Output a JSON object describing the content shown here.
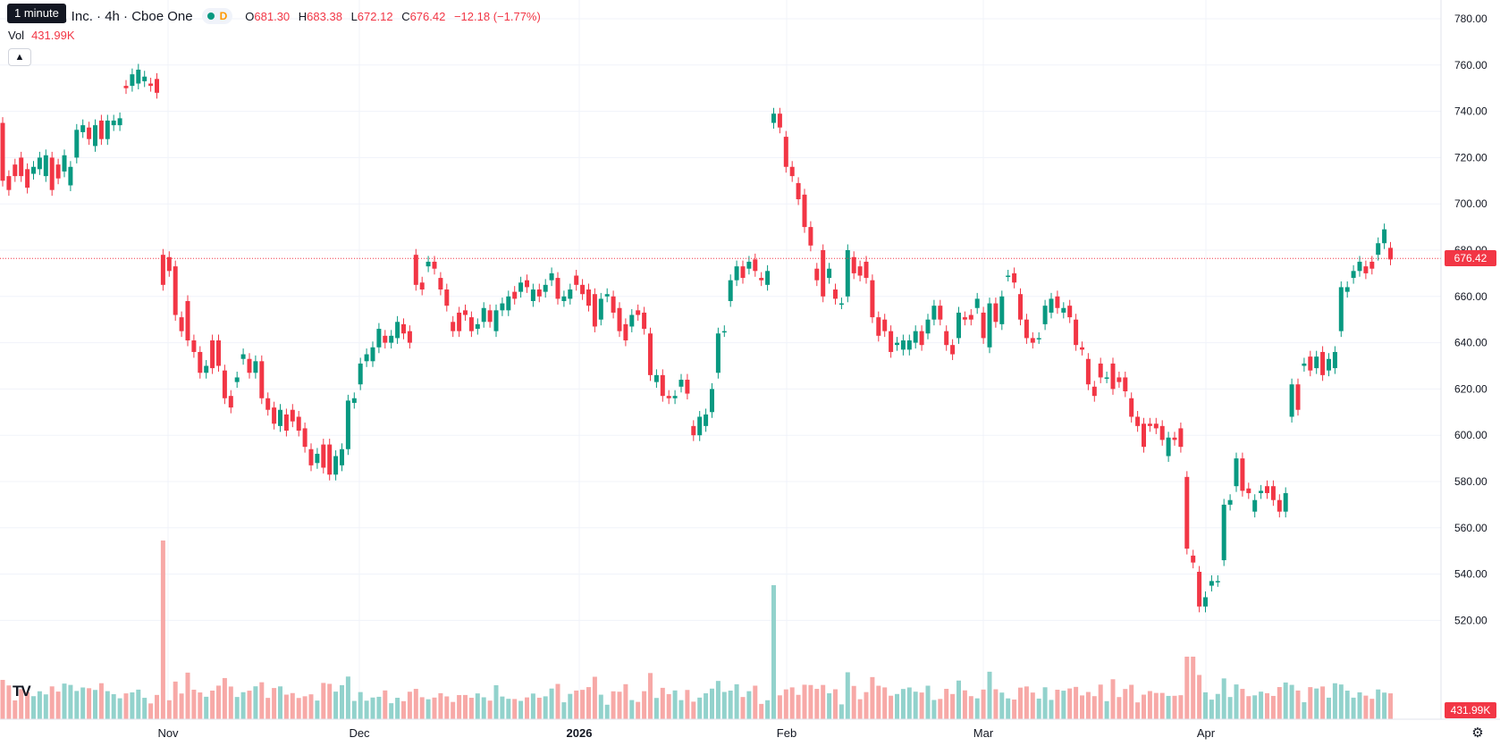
{
  "legend": {
    "title": "Platforms, Inc. · 4h · Cboe One",
    "flag": "D",
    "open_key": "O",
    "open": "681.30",
    "high_key": "H",
    "high": "683.38",
    "low_key": "L",
    "low": "672.12",
    "close_key": "C",
    "close": "676.42",
    "change": "−12.18 (−1.77%)"
  },
  "volume": {
    "label": "Vol",
    "value": "431.99K"
  },
  "tooltip": "1 minute",
  "collapse_icon": "chevron-up-icon",
  "logo": "TV",
  "settings_icon": "gear-icon",
  "last_price_tag": "676.42",
  "last_volume_tag": "431.99K",
  "colors": {
    "up": "#089981",
    "down": "#f23645",
    "up_volume": "#92d2cc",
    "down_volume": "#f7a9a7",
    "grid": "#f0f3fa"
  },
  "chart_data": {
    "type": "candlestick",
    "y_axis_ticks": [
      "780.00",
      "760.00",
      "740.00",
      "720.00",
      "700.00",
      "680.00",
      "660.00",
      "640.00",
      "620.00",
      "600.00",
      "580.00",
      "560.00",
      "540.00",
      "520.00"
    ],
    "ylim": [
      513,
      784
    ],
    "x_axis_labels": [
      "Nov",
      "Dec",
      "2026",
      "Feb",
      "Mar",
      "Apr"
    ],
    "last_price": 676.42,
    "candles": [
      [
        0,
        735,
        710
      ],
      [
        1,
        712,
        706
      ],
      [
        2,
        717,
        712
      ],
      [
        3,
        720,
        712
      ],
      [
        4,
        715,
        707
      ],
      [
        5,
        713,
        716
      ],
      [
        6,
        715,
        720
      ],
      [
        7,
        712,
        721
      ],
      [
        8,
        720,
        706
      ],
      [
        9,
        717,
        711
      ],
      [
        10,
        714,
        721
      ],
      [
        11,
        708,
        716
      ],
      [
        12,
        720,
        732
      ],
      [
        13,
        731,
        734
      ],
      [
        14,
        733,
        728
      ],
      [
        15,
        725,
        734
      ],
      [
        16,
        736,
        728
      ],
      [
        17,
        728,
        736
      ],
      [
        18,
        734,
        736
      ],
      [
        19,
        734,
        737
      ],
      [
        20,
        751,
        750
      ],
      [
        21,
        751,
        756
      ],
      [
        22,
        752,
        758
      ],
      [
        23,
        753,
        755
      ],
      [
        24,
        752,
        751
      ],
      [
        25,
        754,
        748
      ],
      [
        26,
        678,
        665
      ],
      [
        27,
        677,
        671
      ],
      [
        28,
        673,
        652
      ],
      [
        29,
        651,
        645
      ],
      [
        30,
        658,
        641
      ],
      [
        31,
        641,
        636
      ],
      [
        32,
        636,
        627
      ],
      [
        33,
        627,
        630
      ],
      [
        34,
        641,
        629
      ],
      [
        35,
        641,
        630
      ],
      [
        36,
        628,
        616
      ],
      [
        37,
        617,
        612
      ],
      [
        38,
        623,
        625
      ],
      [
        39,
        633,
        635
      ],
      [
        40,
        633,
        627
      ],
      [
        41,
        627,
        632
      ],
      [
        42,
        632,
        616
      ],
      [
        43,
        616,
        611
      ],
      [
        44,
        612,
        605
      ],
      [
        45,
        604,
        611
      ],
      [
        46,
        609,
        602
      ],
      [
        47,
        611,
        606
      ],
      [
        48,
        608,
        602
      ],
      [
        49,
        603,
        595
      ],
      [
        50,
        594,
        587
      ],
      [
        51,
        588,
        592
      ],
      [
        52,
        596,
        586
      ],
      [
        53,
        596,
        583
      ],
      [
        54,
        583,
        591
      ],
      [
        55,
        587,
        594
      ],
      [
        56,
        594,
        615
      ],
      [
        57,
        614,
        616
      ],
      [
        58,
        622,
        631
      ],
      [
        59,
        632,
        635
      ],
      [
        60,
        632,
        638
      ],
      [
        61,
        638,
        646
      ],
      [
        62,
        643,
        640
      ],
      [
        63,
        640,
        643
      ],
      [
        64,
        642,
        649
      ],
      [
        65,
        648,
        644
      ],
      [
        66,
        645,
        640
      ],
      [
        67,
        678,
        665
      ],
      [
        68,
        666,
        663
      ],
      [
        69,
        673,
        675
      ],
      [
        70,
        675,
        672
      ],
      [
        71,
        668,
        663
      ],
      [
        72,
        663,
        656
      ],
      [
        73,
        649,
        645
      ],
      [
        74,
        653,
        645
      ],
      [
        75,
        654,
        652
      ],
      [
        76,
        651,
        645
      ],
      [
        77,
        646,
        648
      ],
      [
        78,
        649,
        655
      ],
      [
        79,
        654,
        649
      ],
      [
        80,
        645,
        654
      ],
      [
        81,
        654,
        657
      ],
      [
        82,
        654,
        660
      ],
      [
        83,
        662,
        659
      ],
      [
        84,
        662,
        666
      ],
      [
        85,
        667,
        664
      ],
      [
        86,
        658,
        663
      ],
      [
        87,
        663,
        660
      ],
      [
        88,
        662,
        665
      ],
      [
        89,
        667,
        670
      ],
      [
        90,
        668,
        659
      ],
      [
        91,
        658,
        660
      ],
      [
        92,
        659,
        663
      ],
      [
        93,
        669,
        665
      ],
      [
        94,
        665,
        661
      ],
      [
        95,
        663,
        656
      ],
      [
        96,
        661,
        647
      ],
      [
        97,
        650,
        659
      ],
      [
        98,
        660,
        661
      ],
      [
        99,
        660,
        653
      ],
      [
        100,
        655,
        645
      ],
      [
        101,
        648,
        641
      ],
      [
        102,
        647,
        652
      ],
      [
        103,
        654,
        652
      ],
      [
        104,
        653,
        646
      ],
      [
        105,
        644,
        626
      ],
      [
        106,
        623,
        626
      ],
      [
        107,
        626,
        617
      ],
      [
        108,
        617,
        616
      ],
      [
        109,
        616,
        617
      ],
      [
        110,
        621,
        624
      ],
      [
        111,
        624,
        618
      ],
      [
        112,
        604,
        600
      ],
      [
        113,
        600,
        608
      ],
      [
        114,
        604,
        609
      ],
      [
        115,
        610,
        620
      ],
      [
        116,
        627,
        644
      ],
      [
        117,
        645,
        645
      ],
      [
        118,
        658,
        667
      ],
      [
        119,
        667,
        673
      ],
      [
        120,
        673,
        668
      ],
      [
        121,
        672,
        675
      ],
      [
        122,
        676,
        671
      ],
      [
        123,
        668,
        667
      ],
      [
        124,
        665,
        671
      ],
      [
        125,
        735,
        739
      ],
      [
        126,
        739,
        733
      ],
      [
        127,
        729,
        716
      ],
      [
        128,
        716,
        712
      ],
      [
        129,
        709,
        702
      ],
      [
        130,
        704,
        690
      ],
      [
        131,
        690,
        682
      ],
      [
        132,
        672,
        667
      ],
      [
        133,
        680,
        660
      ],
      [
        134,
        668,
        672
      ],
      [
        135,
        663,
        659
      ],
      [
        136,
        657,
        657
      ],
      [
        137,
        660,
        680
      ],
      [
        138,
        677,
        670
      ],
      [
        139,
        673,
        669
      ],
      [
        140,
        675,
        668
      ],
      [
        141,
        667,
        651
      ],
      [
        142,
        651,
        643
      ],
      [
        143,
        650,
        645
      ],
      [
        144,
        645,
        636
      ],
      [
        145,
        639,
        640
      ],
      [
        146,
        637,
        641
      ],
      [
        147,
        637,
        641
      ],
      [
        148,
        640,
        645
      ],
      [
        149,
        645,
        639
      ],
      [
        150,
        644,
        650
      ],
      [
        151,
        650,
        656
      ],
      [
        152,
        656,
        650
      ],
      [
        153,
        645,
        639
      ],
      [
        154,
        639,
        635
      ],
      [
        155,
        642,
        653
      ],
      [
        156,
        651,
        650
      ],
      [
        157,
        652,
        650
      ],
      [
        158,
        655,
        659
      ],
      [
        159,
        653,
        642
      ],
      [
        160,
        638,
        657
      ],
      [
        161,
        657,
        649
      ],
      [
        162,
        648,
        660
      ],
      [
        163,
        669,
        669
      ],
      [
        164,
        670,
        666
      ],
      [
        165,
        661,
        650
      ],
      [
        166,
        650,
        642
      ],
      [
        167,
        642,
        640
      ],
      [
        168,
        642,
        642
      ],
      [
        169,
        648,
        656
      ],
      [
        170,
        653,
        659
      ],
      [
        171,
        660,
        655
      ],
      [
        172,
        653,
        655
      ],
      [
        173,
        656,
        651
      ],
      [
        174,
        650,
        639
      ],
      [
        175,
        638,
        637
      ],
      [
        176,
        633,
        622
      ],
      [
        177,
        621,
        617
      ],
      [
        178,
        631,
        625
      ],
      [
        179,
        625,
        625
      ],
      [
        180,
        631,
        620
      ],
      [
        181,
        625,
        623
      ],
      [
        182,
        625,
        619
      ],
      [
        183,
        616,
        608
      ],
      [
        184,
        608,
        604
      ],
      [
        185,
        605,
        595
      ],
      [
        186,
        605,
        604
      ],
      [
        187,
        605,
        603
      ],
      [
        188,
        604,
        598
      ],
      [
        189,
        591,
        599
      ],
      [
        190,
        599,
        598
      ],
      [
        191,
        603,
        595
      ],
      [
        192,
        582,
        551
      ],
      [
        193,
        548,
        545
      ],
      [
        194,
        541,
        526
      ],
      [
        195,
        526,
        530
      ],
      [
        196,
        535,
        537
      ],
      [
        197,
        537,
        537
      ],
      [
        198,
        546,
        570
      ],
      [
        199,
        570,
        572
      ],
      [
        200,
        578,
        590
      ],
      [
        201,
        590,
        576
      ],
      [
        202,
        577,
        575
      ],
      [
        203,
        567,
        572
      ],
      [
        204,
        575,
        576
      ],
      [
        205,
        578,
        575
      ],
      [
        206,
        578,
        572
      ],
      [
        207,
        572,
        567
      ],
      [
        208,
        567,
        575
      ],
      [
        209,
        608,
        622
      ],
      [
        210,
        622,
        611
      ],
      [
        211,
        630,
        631
      ],
      [
        212,
        634,
        628
      ],
      [
        213,
        629,
        634
      ],
      [
        214,
        636,
        626
      ],
      [
        215,
        628,
        633
      ],
      [
        216,
        629,
        636
      ],
      [
        217,
        645,
        664
      ],
      [
        218,
        662,
        664
      ],
      [
        219,
        668,
        671
      ],
      [
        220,
        671,
        675
      ],
      [
        221,
        673,
        670
      ],
      [
        222,
        675,
        672
      ],
      [
        223,
        678,
        683
      ],
      [
        224,
        683,
        689
      ],
      [
        225,
        681,
        676
      ]
    ],
    "volume": {
      "overall_ma_k": 180,
      "max_bar_k": 1260
    }
  }
}
